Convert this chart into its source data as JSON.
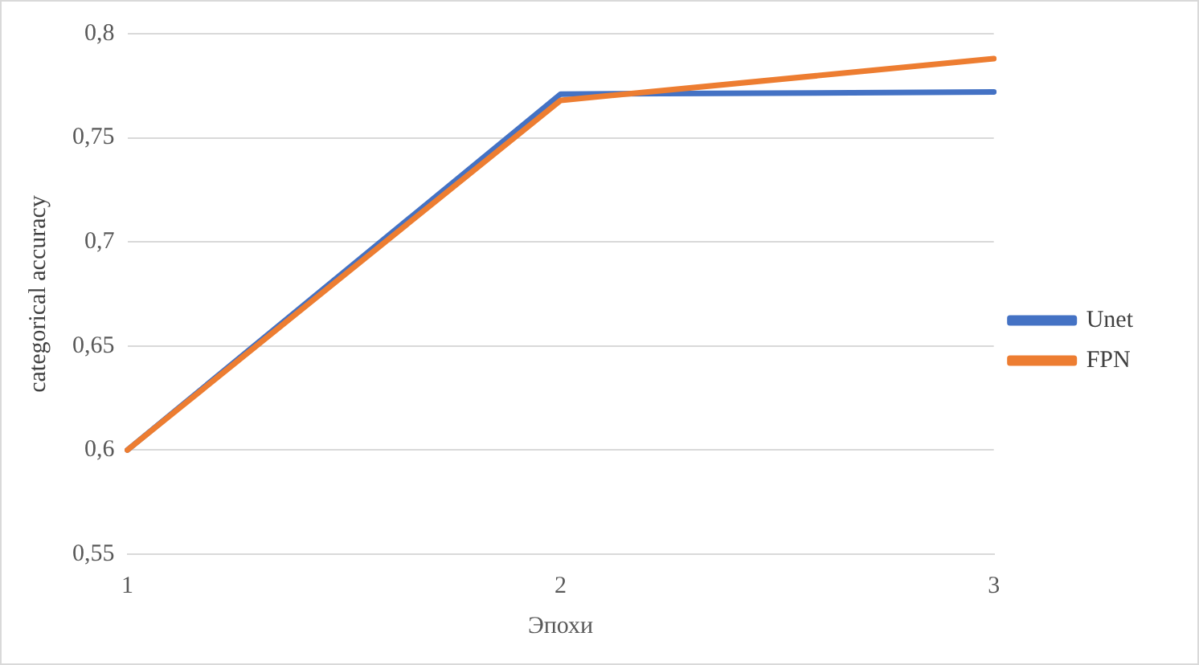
{
  "chart_data": {
    "type": "line",
    "xlabel": "Эпохи",
    "ylabel": "categorical accuracy",
    "categories": [
      "1",
      "2",
      "3"
    ],
    "series": [
      {
        "name": "Unet",
        "color": "#4472c4",
        "values": [
          0.6,
          0.771,
          0.772
        ]
      },
      {
        "name": "FPN",
        "color": "#ed7d31",
        "values": [
          0.6,
          0.768,
          0.788
        ]
      }
    ],
    "ylim": [
      0.55,
      0.8
    ],
    "yticks": [
      {
        "value": 0.55,
        "label": "0,55"
      },
      {
        "value": 0.6,
        "label": "0,6"
      },
      {
        "value": 0.65,
        "label": "0,65"
      },
      {
        "value": 0.7,
        "label": "0,7"
      },
      {
        "value": 0.75,
        "label": "0,75"
      },
      {
        "value": 0.8,
        "label": "0,8"
      }
    ],
    "grid": "y",
    "legend": "right",
    "marker": "none",
    "line_style": "solid"
  }
}
